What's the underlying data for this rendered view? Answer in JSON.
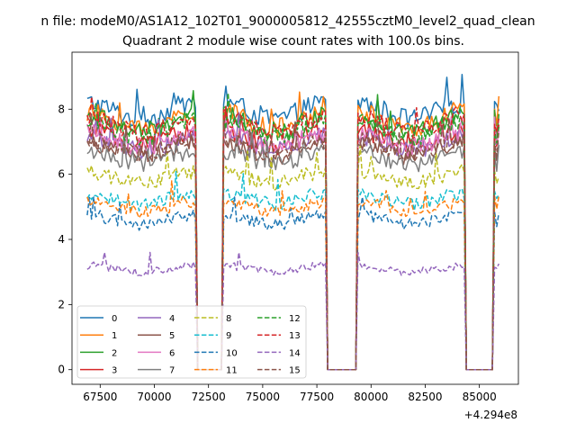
{
  "chart_data": {
    "type": "line",
    "suptitle": "n file: modeM0/AS1A12_102T01_9000005812_42555cztM0_level2_quad_clean",
    "title": "Quadrant 2 module wise count rates with 100.0s bins.",
    "xlabel": "",
    "ylabel": "",
    "x_offset_label": "+4.294e8",
    "xlim": [
      66200,
      86800
    ],
    "ylim": [
      -0.45,
      9.75
    ],
    "x_ticks": [
      67500,
      70000,
      72500,
      75000,
      77500,
      80000,
      82500,
      85000
    ],
    "x_tick_labels": [
      "67500",
      "70000",
      "72500",
      "75000",
      "77500",
      "80000",
      "82500",
      "85000"
    ],
    "y_ticks": [
      0,
      2,
      4,
      6,
      8
    ],
    "y_tick_labels": [
      "0",
      "2",
      "4",
      "6",
      "8"
    ],
    "grid": false,
    "legend_location": "lower-left",
    "legend_columns": 4,
    "bin_seconds": 100,
    "on_intervals": [
      [
        66900,
        71900
      ],
      [
        73200,
        77900
      ],
      [
        79400,
        84300
      ],
      [
        85700,
        85900
      ]
    ],
    "off_intervals": [
      [
        72000,
        73100
      ],
      [
        78000,
        79300
      ],
      [
        84400,
        85600
      ]
    ],
    "series": [
      {
        "name": "0",
        "color": "#1f77b4",
        "dash": "solid",
        "level": 7.95,
        "max": 9.3
      },
      {
        "name": "1",
        "color": "#ff7f0e",
        "dash": "solid",
        "level": 7.65,
        "max": 8.9
      },
      {
        "name": "2",
        "color": "#2ca02c",
        "dash": "solid",
        "level": 7.55,
        "max": 8.8
      },
      {
        "name": "3",
        "color": "#d62728",
        "dash": "solid",
        "level": 7.1,
        "max": 8.3
      },
      {
        "name": "4",
        "color": "#9467bd",
        "dash": "solid",
        "level": 6.95,
        "max": 8.0
      },
      {
        "name": "5",
        "color": "#8c564b",
        "dash": "solid",
        "level": 6.75,
        "max": 7.9
      },
      {
        "name": "6",
        "color": "#e377c2",
        "dash": "solid",
        "level": 7.05,
        "max": 8.1
      },
      {
        "name": "7",
        "color": "#7f7f7f",
        "dash": "solid",
        "level": 6.5,
        "max": 7.6
      },
      {
        "name": "8",
        "color": "#bcbd22",
        "dash": "dashed",
        "level": 5.9,
        "max": 6.9
      },
      {
        "name": "9",
        "color": "#17becf",
        "dash": "dashed",
        "level": 5.25,
        "max": 6.2
      },
      {
        "name": "10",
        "color": "#1f77b4",
        "dash": "dashed",
        "level": 4.6,
        "max": 5.3
      },
      {
        "name": "11",
        "color": "#ff7f0e",
        "dash": "dashed",
        "level": 5.0,
        "max": 5.9
      },
      {
        "name": "12",
        "color": "#2ca02c",
        "dash": "dashed",
        "level": 7.4,
        "max": 8.6
      },
      {
        "name": "13",
        "color": "#d62728",
        "dash": "dashed",
        "level": 7.5,
        "max": 8.7
      },
      {
        "name": "14",
        "color": "#9467bd",
        "dash": "dashed",
        "level": 3.1,
        "max": 3.6
      },
      {
        "name": "15",
        "color": "#8c564b",
        "dash": "dashed",
        "level": 6.85,
        "max": 7.9
      }
    ]
  }
}
